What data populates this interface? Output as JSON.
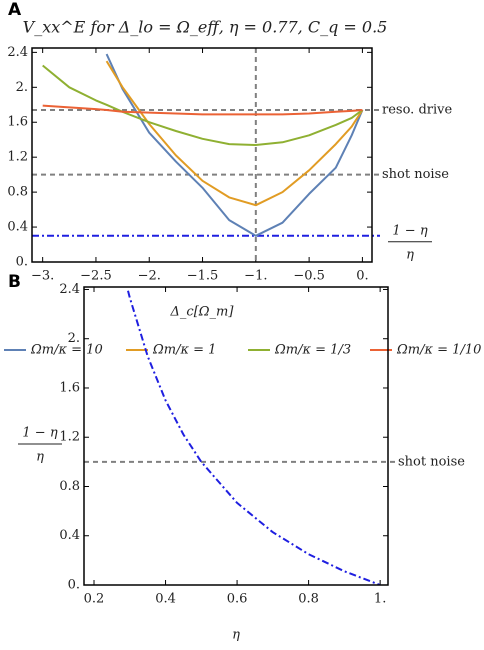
{
  "chart_data": [
    {
      "type": "line",
      "panel": "A",
      "title": "V_xx^E for Δ_lo = Ω_eff, η = 0.77, C_q = 0.5",
      "xlabel": "Δ_c[Ω_m]",
      "x": [
        -3,
        -2.75,
        -2.5,
        -2.4,
        -2.25,
        -2,
        -1.75,
        -1.5,
        -1.25,
        -1,
        -0.75,
        -0.5,
        -0.25,
        -0.1,
        0
      ],
      "xlim": [
        -3.1,
        0.09
      ],
      "ylim": [
        0,
        2.45
      ],
      "xticks": [
        {
          "value": -3,
          "label": "−3."
        },
        {
          "value": -2.5,
          "label": "−2.5"
        },
        {
          "value": -2,
          "label": "−2."
        },
        {
          "value": -1.5,
          "label": "−1.5"
        },
        {
          "value": -1,
          "label": "−1."
        },
        {
          "value": -0.5,
          "label": "−0.5"
        },
        {
          "value": 0,
          "label": "0."
        }
      ],
      "yticks": [
        {
          "value": 0,
          "label": "0."
        },
        0.4,
        0.8,
        1.2,
        1.6,
        {
          "value": 2,
          "label": "2."
        },
        2.4
      ],
      "series": [
        {
          "name": "Ωm/κ = 10",
          "color": "#5e81b5",
          "values": [
            null,
            null,
            null,
            2.38,
            1.98,
            1.48,
            1.15,
            0.85,
            0.48,
            0.3,
            0.45,
            0.78,
            1.08,
            1.45,
            1.74
          ]
        },
        {
          "name": "Ωm/κ = 1",
          "color": "#e19c24",
          "values": [
            null,
            null,
            null,
            2.3,
            2.0,
            1.58,
            1.22,
            0.93,
            0.74,
            0.65,
            0.8,
            1.05,
            1.35,
            1.55,
            1.74
          ]
        },
        {
          "name": "Ωm/κ = 1/3",
          "color": "#8fb032",
          "values": [
            2.25,
            2.0,
            1.85,
            1.8,
            1.72,
            1.6,
            1.5,
            1.41,
            1.35,
            1.34,
            1.37,
            1.45,
            1.57,
            1.65,
            1.74
          ]
        },
        {
          "name": "Ωm/κ = 1/10",
          "color": "#eb6235",
          "values": [
            1.79,
            1.77,
            1.75,
            1.74,
            1.72,
            1.71,
            1.7,
            1.69,
            1.69,
            1.69,
            1.69,
            1.7,
            1.72,
            1.73,
            1.74
          ]
        }
      ],
      "hlines": [
        {
          "value": 1.74,
          "label": [
            "reso. drive"
          ],
          "color": "#808080",
          "style": "dashed"
        },
        {
          "value": 1.0,
          "label": [
            "shot noise"
          ],
          "color": "#808080",
          "style": "dashed"
        },
        {
          "value": 0.3,
          "label": [
            "1 − η",
            "η"
          ],
          "color": "#1f1fe0",
          "style": "dashdot"
        }
      ],
      "vlines": [
        {
          "value": -1,
          "color": "#808080",
          "style": "dashed"
        }
      ]
    },
    {
      "type": "line",
      "panel": "B",
      "xlabel": "η",
      "ylabel": [
        "1 − η",
        "η"
      ],
      "x": [
        0.295,
        0.3,
        0.35,
        0.4,
        0.45,
        0.5,
        0.6,
        0.7,
        0.8,
        0.9,
        1.0
      ],
      "xlim": [
        0.172,
        1.022
      ],
      "ylim": [
        0,
        2.42
      ],
      "xticks": [
        0.2,
        0.4,
        0.6,
        0.8,
        {
          "value": 1,
          "label": "1."
        }
      ],
      "yticks": [
        {
          "value": 0,
          "label": "0."
        },
        0.4,
        0.8,
        1.2,
        1.6,
        {
          "value": 2,
          "label": "2."
        },
        2.4
      ],
      "series": [
        {
          "color": "#1f1fe0",
          "style": "dashdot",
          "values": [
            2.39,
            2.333,
            1.857,
            1.5,
            1.222,
            1.0,
            0.667,
            0.429,
            0.25,
            0.111,
            0
          ]
        }
      ],
      "hlines": [
        {
          "value": 1.0,
          "label": [
            "shot noise"
          ],
          "color": "#808080",
          "style": "dashed"
        }
      ]
    }
  ]
}
